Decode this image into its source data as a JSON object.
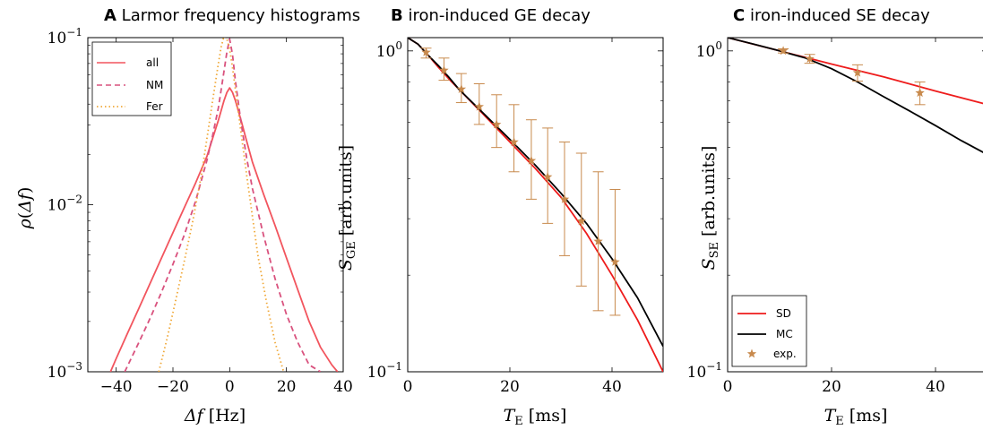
{
  "colors": {
    "all": "#f2555e",
    "NM": "#d9527e",
    "Fer": "#f0a93a",
    "SD": "#ee1c1c",
    "MC": "#000000",
    "exp": "#c88a4d"
  },
  "chart_data": [
    {
      "id": "A",
      "type": "line",
      "panel_letter": "A",
      "title": "Larmor frequency histograms",
      "xlabel": "Δf [Hz]",
      "ylabel": "ρ(Δf)",
      "xlim": [
        -50,
        40
      ],
      "ylim": [
        0.001,
        0.1
      ],
      "yscale": "log",
      "xticks": [
        -40,
        -20,
        0,
        20,
        40
      ],
      "xtick_labels": [
        "−40",
        "−20",
        "0",
        "20",
        "40"
      ],
      "yticks": [
        {
          "value": 0.001,
          "base": "10",
          "exp": "−3"
        },
        {
          "value": 0.01,
          "base": "10",
          "exp": "−2"
        },
        {
          "value": 0.1,
          "base": "10",
          "exp": "−1"
        }
      ],
      "legend_position": "top-left",
      "series": [
        {
          "name": "all",
          "style": "solid",
          "color_key": "all",
          "x": [
            -42,
            -40,
            -36,
            -32,
            -28,
            -24,
            -20,
            -16,
            -12,
            -8,
            -6,
            -4,
            -2,
            -1,
            0,
            1,
            2,
            4,
            6,
            8,
            12,
            16,
            20,
            24,
            28,
            32,
            36,
            38
          ],
          "y": [
            0.001,
            0.0012,
            0.0017,
            0.0024,
            0.0034,
            0.0048,
            0.0068,
            0.0096,
            0.0135,
            0.0195,
            0.025,
            0.032,
            0.042,
            0.047,
            0.05,
            0.047,
            0.042,
            0.032,
            0.024,
            0.018,
            0.0115,
            0.0075,
            0.0048,
            0.0031,
            0.002,
            0.0014,
            0.0011,
            0.001
          ]
        },
        {
          "name": "NM",
          "style": "dashed",
          "color_key": "NM",
          "x": [
            -37,
            -32,
            -28,
            -24,
            -20,
            -16,
            -12,
            -8,
            -6,
            -4,
            -2,
            -1,
            0,
            1,
            2,
            4,
            6,
            8,
            12,
            16,
            20,
            24,
            28,
            32
          ],
          "y": [
            0.001,
            0.0015,
            0.0021,
            0.003,
            0.0044,
            0.0066,
            0.0105,
            0.0185,
            0.026,
            0.038,
            0.063,
            0.082,
            0.098,
            0.079,
            0.055,
            0.031,
            0.019,
            0.0125,
            0.0065,
            0.0036,
            0.0022,
            0.0015,
            0.0011,
            0.001
          ]
        },
        {
          "name": "Fer",
          "style": "dotted",
          "color_key": "Fer",
          "x": [
            -25,
            -22,
            -19,
            -16,
            -13,
            -10,
            -8,
            -6,
            -4,
            -3,
            -2,
            -1,
            0,
            1,
            2,
            4,
            6,
            8,
            10,
            13,
            16,
            19
          ],
          "y": [
            0.001,
            0.0016,
            0.0027,
            0.0046,
            0.008,
            0.015,
            0.025,
            0.042,
            0.07,
            0.088,
            0.102,
            0.098,
            0.085,
            0.066,
            0.049,
            0.027,
            0.015,
            0.0085,
            0.0049,
            0.0026,
            0.0015,
            0.001
          ]
        }
      ]
    },
    {
      "id": "B",
      "type": "line",
      "panel_letter": "B",
      "title": "iron-induced GE decay",
      "xlabel": "T_E [ms]",
      "ylabel": "S_GE [arb.units]",
      "xlim": [
        0,
        50
      ],
      "ylim": [
        0.1,
        1.1
      ],
      "yscale": "log",
      "xticks": [
        0,
        20,
        40
      ],
      "xtick_labels": [
        "0",
        "20",
        "40"
      ],
      "yticks": [
        {
          "value": 0.1,
          "base": "10",
          "exp": "−1"
        },
        {
          "value": 1,
          "base": "10",
          "exp": "0"
        }
      ],
      "series": [
        {
          "name": "SD",
          "style": "solid",
          "color_key": "SD",
          "x": [
            0,
            2,
            4,
            6,
            8,
            10,
            15,
            20,
            25,
            30,
            35,
            40,
            45,
            50
          ],
          "y": [
            1.1,
            1.05,
            0.97,
            0.89,
            0.82,
            0.76,
            0.63,
            0.52,
            0.43,
            0.35,
            0.27,
            0.2,
            0.145,
            0.1
          ]
        },
        {
          "name": "MC",
          "style": "solid",
          "color_key": "MC",
          "x": [
            0,
            2,
            4,
            6,
            8,
            10,
            15,
            20,
            25,
            30,
            35,
            40,
            45,
            50
          ],
          "y": [
            1.1,
            1.05,
            0.97,
            0.9,
            0.83,
            0.76,
            0.635,
            0.53,
            0.44,
            0.36,
            0.29,
            0.225,
            0.17,
            0.12
          ]
        },
        {
          "name": "exp.",
          "style": "markers",
          "marker": "star",
          "color_key": "exp",
          "x": [
            3.6,
            7.1,
            10.5,
            14.0,
            17.4,
            20.8,
            24.2,
            27.4,
            30.7,
            34.0,
            37.3,
            40.6
          ],
          "y": [
            0.99,
            0.87,
            0.76,
            0.67,
            0.59,
            0.52,
            0.455,
            0.405,
            0.345,
            0.295,
            0.255,
            0.22
          ],
          "y_low": [
            0.95,
            0.81,
            0.69,
            0.59,
            0.5,
            0.42,
            0.345,
            0.29,
            0.23,
            0.185,
            0.155,
            0.15
          ],
          "y_high": [
            1.02,
            0.95,
            0.85,
            0.79,
            0.73,
            0.68,
            0.61,
            0.575,
            0.52,
            0.48,
            0.42,
            0.37
          ]
        }
      ]
    },
    {
      "id": "C",
      "type": "line",
      "panel_letter": "C",
      "title": "iron-induced SE decay",
      "xlabel": "T_E [ms]",
      "ylabel": "S_SE [arb.units]",
      "xlim": [
        0,
        50
      ],
      "ylim": [
        0.1,
        1.1
      ],
      "yscale": "log",
      "xticks": [
        0,
        20,
        40
      ],
      "xtick_labels": [
        "0",
        "20",
        "40"
      ],
      "yticks": [
        {
          "value": 0.1,
          "base": "10",
          "exp": "−1"
        },
        {
          "value": 1,
          "base": "10",
          "exp": "0"
        }
      ],
      "legend_position": "bottom-left",
      "series": [
        {
          "name": "SD",
          "style": "solid",
          "color_key": "SD",
          "x": [
            0,
            10,
            20,
            30,
            40,
            50
          ],
          "y": [
            1.1,
            1.0,
            0.91,
            0.83,
            0.75,
            0.68
          ]
        },
        {
          "name": "MC",
          "style": "solid",
          "color_key": "MC",
          "x": [
            0,
            5,
            10,
            15,
            20,
            25,
            30,
            35,
            40,
            45,
            50
          ],
          "y": [
            1.1,
            1.05,
            1.0,
            0.95,
            0.88,
            0.8,
            0.72,
            0.65,
            0.585,
            0.525,
            0.475
          ]
        },
        {
          "name": "exp.",
          "style": "markers",
          "marker": "star",
          "color_key": "exp",
          "x": [
            10.7,
            15.8,
            25.0,
            37.0
          ],
          "y": [
            1.0,
            0.945,
            0.855,
            0.74
          ],
          "y_low": [
            0.985,
            0.915,
            0.805,
            0.68
          ],
          "y_high": [
            1.015,
            0.975,
            0.905,
            0.8
          ]
        }
      ]
    }
  ]
}
